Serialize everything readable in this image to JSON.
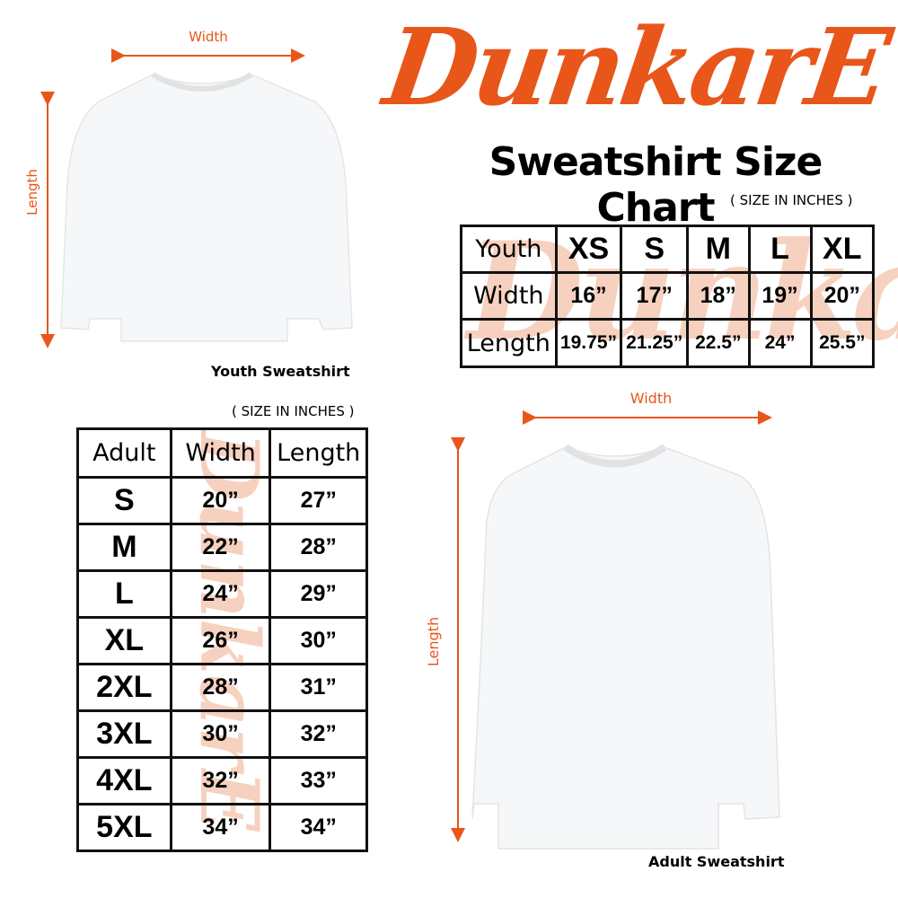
{
  "brand": {
    "logo_text": "DunkarE",
    "accent": "#e8561a",
    "watermark": "#f6c9b4"
  },
  "title": "Sweatshirt Size Chart",
  "youth": {
    "units": "( SIZE IN INCHES )",
    "caption": "Youth Sweatshirt",
    "width_label": "Width",
    "length_label": "Length",
    "header": [
      "Youth",
      "XS",
      "S",
      "M",
      "L",
      "XL"
    ],
    "rows": [
      [
        "Width",
        "16”",
        "17”",
        "18”",
        "19”",
        "20”"
      ],
      [
        "Length",
        "19.75”",
        "21.25”",
        "22.5”",
        "24”",
        "25.5”"
      ]
    ]
  },
  "adult": {
    "units": "( SIZE IN INCHES )",
    "caption": "Adult Sweatshirt",
    "width_label": "Width",
    "length_label": "Length",
    "header": [
      "Adult",
      "Width",
      "Length"
    ],
    "rows": [
      [
        "S",
        "20”",
        "27”"
      ],
      [
        "M",
        "22”",
        "28”"
      ],
      [
        "L",
        "24”",
        "29”"
      ],
      [
        "XL",
        "26”",
        "30”"
      ],
      [
        "2XL",
        "28”",
        "31”"
      ],
      [
        "3XL",
        "30”",
        "32”"
      ],
      [
        "4XL",
        "32”",
        "33”"
      ],
      [
        "5XL",
        "34”",
        "34”"
      ]
    ]
  }
}
